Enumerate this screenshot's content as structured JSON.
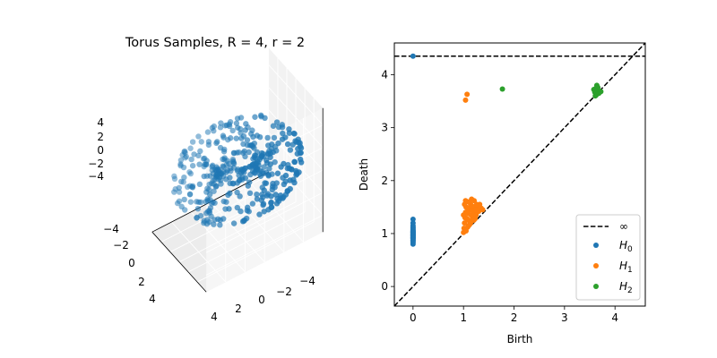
{
  "chart_data": [
    {
      "type": "scatter",
      "projection": "3d",
      "title": "Torus Samples, R = 4, r = 2",
      "xlabel": "",
      "ylabel": "",
      "zlabel": "",
      "axis_ticks": {
        "x": [
          "−4",
          "−2",
          "0",
          "2",
          "4"
        ],
        "y": [
          "−4",
          "−2",
          "0",
          "2",
          "4"
        ],
        "z": [
          "4",
          "2",
          "0",
          "−2",
          "−4"
        ]
      },
      "xlim": [
        -6,
        6
      ],
      "ylim": [
        -6,
        6
      ],
      "zlim": [
        -5.5,
        5.5
      ],
      "torus": {
        "R": 4,
        "r": 2,
        "n_samples": 400
      },
      "color": "#1f77b4",
      "grid": true
    },
    {
      "type": "scatter",
      "title": "",
      "xlabel": "Birth",
      "ylabel": "Death",
      "xlim": [
        -0.37,
        4.6
      ],
      "ylim": [
        -0.37,
        4.6
      ],
      "xticks": [
        0,
        1,
        2,
        3,
        4
      ],
      "yticks": [
        0,
        1,
        2,
        3,
        4
      ],
      "infinity_value": 4.35,
      "legend": {
        "position": "lower-right",
        "entries": [
          {
            "key": "inf",
            "label": "∞",
            "style": "dashed-line",
            "color": "#000000"
          },
          {
            "key": "h0",
            "label": "H",
            "sub": "0",
            "style": "dot",
            "color": "#1f77b4"
          },
          {
            "key": "h1",
            "label": "H",
            "sub": "1",
            "style": "dot",
            "color": "#ff7f0e"
          },
          {
            "key": "h2",
            "label": "H",
            "sub": "2",
            "style": "dot",
            "color": "#2ca02c"
          }
        ]
      },
      "series": [
        {
          "name": "H₀",
          "color": "#1f77b4",
          "points": [
            [
              0,
              0.8
            ],
            [
              0,
              0.83
            ],
            [
              0,
              0.85
            ],
            [
              0,
              0.87
            ],
            [
              0,
              0.88
            ],
            [
              0,
              0.9
            ],
            [
              0,
              0.91
            ],
            [
              0,
              0.92
            ],
            [
              0,
              0.93
            ],
            [
              0,
              0.94
            ],
            [
              0,
              0.95
            ],
            [
              0,
              0.96
            ],
            [
              0,
              0.97
            ],
            [
              0,
              0.98
            ],
            [
              0,
              0.99
            ],
            [
              0,
              1.0
            ],
            [
              0,
              1.01
            ],
            [
              0,
              1.02
            ],
            [
              0,
              1.03
            ],
            [
              0,
              1.04
            ],
            [
              0,
              1.05
            ],
            [
              0,
              1.06
            ],
            [
              0,
              1.08
            ],
            [
              0,
              1.1
            ],
            [
              0,
              1.12
            ],
            [
              0,
              1.15
            ],
            [
              0,
              1.2
            ],
            [
              0,
              1.27
            ],
            [
              0,
              4.35
            ]
          ]
        },
        {
          "name": "H₁",
          "color": "#ff7f0e",
          "points": [
            [
              1.0,
              1.02
            ],
            [
              1.01,
              1.1
            ],
            [
              1.02,
              1.2
            ],
            [
              1.03,
              1.3
            ],
            [
              1.04,
              1.4
            ],
            [
              1.05,
              1.5
            ],
            [
              1.06,
              1.6
            ],
            [
              1.08,
              1.12
            ],
            [
              1.1,
              1.25
            ],
            [
              1.12,
              1.45
            ],
            [
              1.14,
              1.55
            ],
            [
              1.16,
              1.65
            ],
            [
              1.18,
              1.3
            ],
            [
              1.2,
              1.5
            ],
            [
              1.22,
              1.4
            ],
            [
              1.25,
              1.35
            ],
            [
              1.28,
              1.5
            ],
            [
              1.3,
              1.42
            ],
            [
              1.35,
              1.48
            ],
            [
              1.38,
              1.45
            ],
            [
              1.0,
              1.35
            ],
            [
              1.02,
              1.55
            ],
            [
              1.07,
              1.28
            ],
            [
              1.09,
              1.38
            ],
            [
              1.11,
              1.6
            ],
            [
              1.13,
              1.18
            ],
            [
              1.15,
              1.35
            ],
            [
              1.17,
              1.52
            ],
            [
              1.19,
              1.42
            ],
            [
              1.21,
              1.62
            ],
            [
              1.23,
              1.28
            ],
            [
              1.26,
              1.55
            ],
            [
              1.05,
              1.05
            ],
            [
              1.1,
              1.15
            ],
            [
              1.15,
              1.22
            ],
            [
              1.2,
              1.25
            ],
            [
              1.24,
              1.45
            ],
            [
              1.32,
              1.55
            ],
            [
              1.04,
              1.62
            ],
            [
              1.08,
              1.48
            ],
            [
              1.04,
              3.52
            ],
            [
              1.07,
              3.63
            ]
          ]
        },
        {
          "name": "H₂",
          "color": "#2ca02c",
          "points": [
            [
              1.77,
              3.73
            ],
            [
              3.58,
              3.72
            ],
            [
              3.6,
              3.67
            ],
            [
              3.62,
              3.74
            ],
            [
              3.63,
              3.62
            ],
            [
              3.65,
              3.7
            ],
            [
              3.66,
              3.76
            ],
            [
              3.68,
              3.65
            ],
            [
              3.7,
              3.69
            ],
            [
              3.64,
              3.8
            ],
            [
              3.72,
              3.68
            ],
            [
              3.61,
              3.6
            ]
          ]
        }
      ]
    }
  ]
}
